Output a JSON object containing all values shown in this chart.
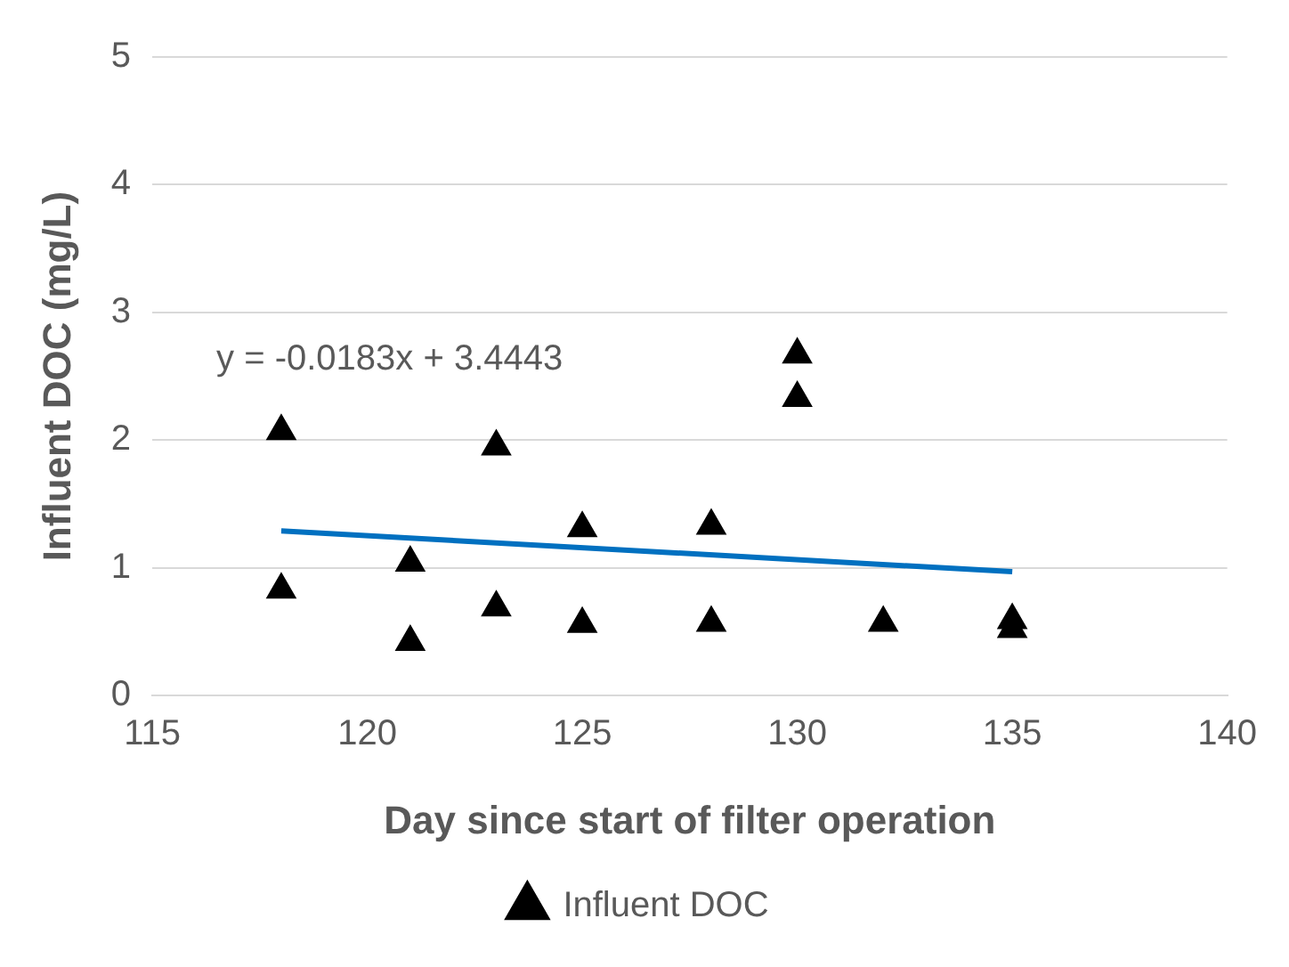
{
  "chart_data": {
    "type": "scatter",
    "xlabel": "Day since start of filter operation",
    "ylabel": "Influent DOC (mg/L)",
    "xlim": [
      115,
      140
    ],
    "xticks": [
      115,
      120,
      125,
      130,
      135,
      140
    ],
    "ylim": [
      0,
      5
    ],
    "yticks": [
      0,
      1,
      2,
      3,
      4,
      5
    ],
    "grid": "y",
    "legend": "bottom",
    "annotations": [
      "y = -0.0183x + 3.4443"
    ],
    "series": [
      {
        "name": "Influent DOC",
        "type": "scatter",
        "color": "#000000",
        "marker": "triangle",
        "x": [
          118,
          118,
          121,
          121,
          123,
          123,
          125,
          125,
          128,
          128,
          130,
          130,
          132,
          135,
          135
        ],
        "values": [
          2.07,
          0.83,
          1.04,
          0.42,
          1.95,
          0.69,
          1.31,
          0.56,
          1.33,
          0.57,
          2.67,
          2.33,
          0.57,
          0.59,
          0.52
        ]
      },
      {
        "type": "line",
        "color": "#0070c0",
        "marker": "none",
        "x": [
          118,
          135
        ],
        "values": [
          1.29,
          0.97
        ]
      }
    ]
  }
}
